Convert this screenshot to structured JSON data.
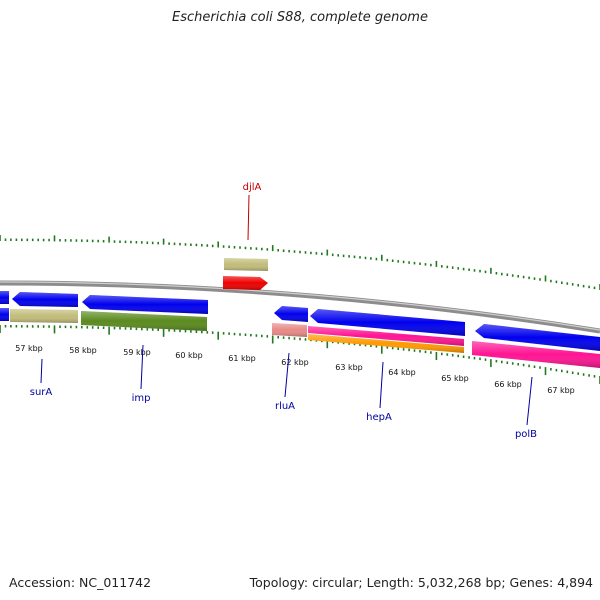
{
  "title": "Escherichia coli S88, complete genome",
  "footer": {
    "accession": "Accession: NC_011742",
    "topology": "Topology: circular; Length: 5,032,268 bp; Genes: 4,894"
  },
  "colors": {
    "backbone": "#8c8c8c",
    "tick": "#1f7a1f",
    "forward_label": "#c00000",
    "reverse_label": "#0000a0",
    "blue_feature": "#0000ee",
    "khaki_feature": "#c2bc7a",
    "olive_feature": "#5a8a1e",
    "red_feature": "#ee0000",
    "salmon_feature": "#e88a88",
    "magenta_feature": "#ff1493",
    "orange_feature": "#ff9900"
  },
  "kbp_labels": [
    "57 kbp",
    "58 kbp",
    "59 kbp",
    "60 kbp",
    "61 kbp",
    "62 kbp",
    "63 kbp",
    "64 kbp",
    "65 kbp",
    "66 kbp",
    "67 kbp"
  ],
  "genes": [
    {
      "name": "djlA",
      "strand": "forward"
    },
    {
      "name": "surA",
      "strand": "reverse"
    },
    {
      "name": "imp",
      "strand": "reverse"
    },
    {
      "name": "rluA",
      "strand": "reverse"
    },
    {
      "name": "hepA",
      "strand": "reverse"
    },
    {
      "name": "polB",
      "strand": "reverse"
    }
  ],
  "features": [
    {
      "id": "f-left-blue",
      "color": "blue_feature",
      "strand": "reverse",
      "start": 56.0,
      "end": 56.6,
      "row": "R1"
    },
    {
      "id": "f-surA-blue",
      "color": "blue_feature",
      "strand": "reverse",
      "start": 56.6,
      "end": 57.85,
      "row": "R1"
    },
    {
      "id": "f-imp-blue",
      "color": "blue_feature",
      "strand": "reverse",
      "start": 58.05,
      "end": 60.4,
      "row": "R1"
    },
    {
      "id": "f-left-blue2",
      "color": "blue_feature",
      "strand": "reverse",
      "start": 56.0,
      "end": 56.6,
      "row": "R2"
    },
    {
      "id": "f-surA-khaki",
      "color": "khaki_feature",
      "strand": "none",
      "start": 56.6,
      "end": 57.85,
      "row": "R2"
    },
    {
      "id": "f-imp-olive",
      "color": "olive_feature",
      "strand": "none",
      "start": 58.05,
      "end": 60.4,
      "row": "R2"
    },
    {
      "id": "f-djlA-khaki",
      "color": "khaki_feature",
      "strand": "none",
      "start": 60.8,
      "end": 61.65,
      "row": "F2"
    },
    {
      "id": "f-djlA-red",
      "color": "red_feature",
      "strand": "forward",
      "start": 60.8,
      "end": 61.65,
      "row": "F1"
    },
    {
      "id": "f-rluA-blue",
      "color": "blue_feature",
      "strand": "reverse",
      "start": 62.0,
      "end": 62.65,
      "row": "R1"
    },
    {
      "id": "f-rluA-salmon",
      "color": "salmon_feature",
      "strand": "none",
      "start": 62.0,
      "end": 62.65,
      "row": "R2"
    },
    {
      "id": "f-hepA-blue",
      "color": "blue_feature",
      "strand": "reverse",
      "start": 62.7,
      "end": 65.5,
      "row": "R1"
    },
    {
      "id": "f-hepA-magenta",
      "color": "magenta_feature",
      "strand": "none",
      "start": 62.7,
      "end": 65.5,
      "row": "R2"
    },
    {
      "id": "f-hepA-orange",
      "color": "orange_feature",
      "strand": "none",
      "start": 62.7,
      "end": 65.5,
      "row": "R3"
    },
    {
      "id": "f-polB-blue",
      "color": "blue_feature",
      "strand": "reverse",
      "start": 65.85,
      "end": 68.2,
      "row": "R1"
    },
    {
      "id": "f-polB-magenta",
      "color": "magenta_feature",
      "strand": "none",
      "start": 65.85,
      "end": 68.2,
      "row": "R2"
    }
  ]
}
